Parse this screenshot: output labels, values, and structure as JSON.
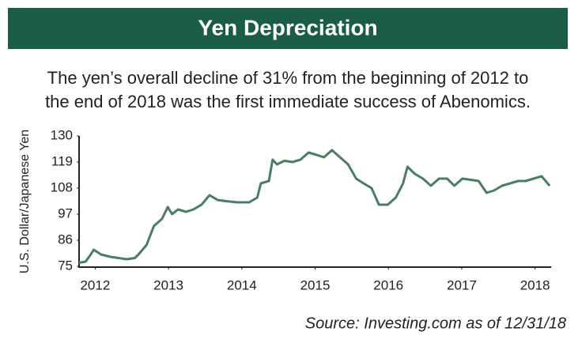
{
  "chart_data": {
    "type": "line",
    "title": "Yen Depreciation",
    "subtitle": [
      "The yen’s overall decline of 31% from the beginning of 2012 to",
      "the end of 2018 was the first immediate success of Abenomics."
    ],
    "y_label": "U.S. Dollar/Japanese Yen",
    "source": "Source: Investing.com as of 12/31/18",
    "xlim": [
      2011.78,
      2018.22
    ],
    "xticks": [
      2012,
      2013,
      2014,
      2015,
      2016,
      2017,
      2018
    ],
    "ylim": [
      75,
      130
    ],
    "yticks": [
      75,
      86,
      97,
      108,
      119,
      130
    ],
    "grid": false,
    "series": [
      {
        "color": "#4a7d64",
        "x": [
          2011.78,
          2011.87,
          2011.94,
          2011.98,
          2012.08,
          2012.21,
          2012.32,
          2012.43,
          2012.54,
          2012.59,
          2012.7,
          2012.8,
          2012.91,
          2012.99,
          2013.05,
          2013.13,
          2013.24,
          2013.34,
          2013.45,
          2013.56,
          2013.67,
          2013.78,
          2013.94,
          2014.1,
          2014.21,
          2014.26,
          2014.37,
          2014.42,
          2014.48,
          2014.58,
          2014.69,
          2014.8,
          2014.91,
          2015.02,
          2015.12,
          2015.23,
          2015.34,
          2015.45,
          2015.56,
          2015.66,
          2015.77,
          2015.87,
          2015.99,
          2016.1,
          2016.2,
          2016.26,
          2016.36,
          2016.47,
          2016.58,
          2016.69,
          2016.8,
          2016.9,
          2017.01,
          2017.12,
          2017.23,
          2017.34,
          2017.44,
          2017.55,
          2017.66,
          2017.77,
          2017.87,
          2017.98,
          2018.09,
          2018.2
        ],
        "values": [
          76.5,
          77,
          80,
          82,
          80,
          79,
          78.5,
          78,
          78.5,
          80,
          84,
          92,
          95,
          100,
          97,
          99,
          98,
          99,
          101,
          105,
          103,
          102.5,
          102,
          102,
          104,
          110,
          111,
          120,
          118,
          119.5,
          119,
          120,
          123,
          122,
          121,
          124,
          121,
          118,
          112,
          110,
          108,
          101,
          101,
          104,
          110,
          117,
          114,
          112,
          109,
          112,
          112,
          109,
          112,
          111.5,
          111,
          106,
          107,
          109,
          110,
          111,
          111,
          112,
          113,
          109
        ]
      }
    ]
  }
}
